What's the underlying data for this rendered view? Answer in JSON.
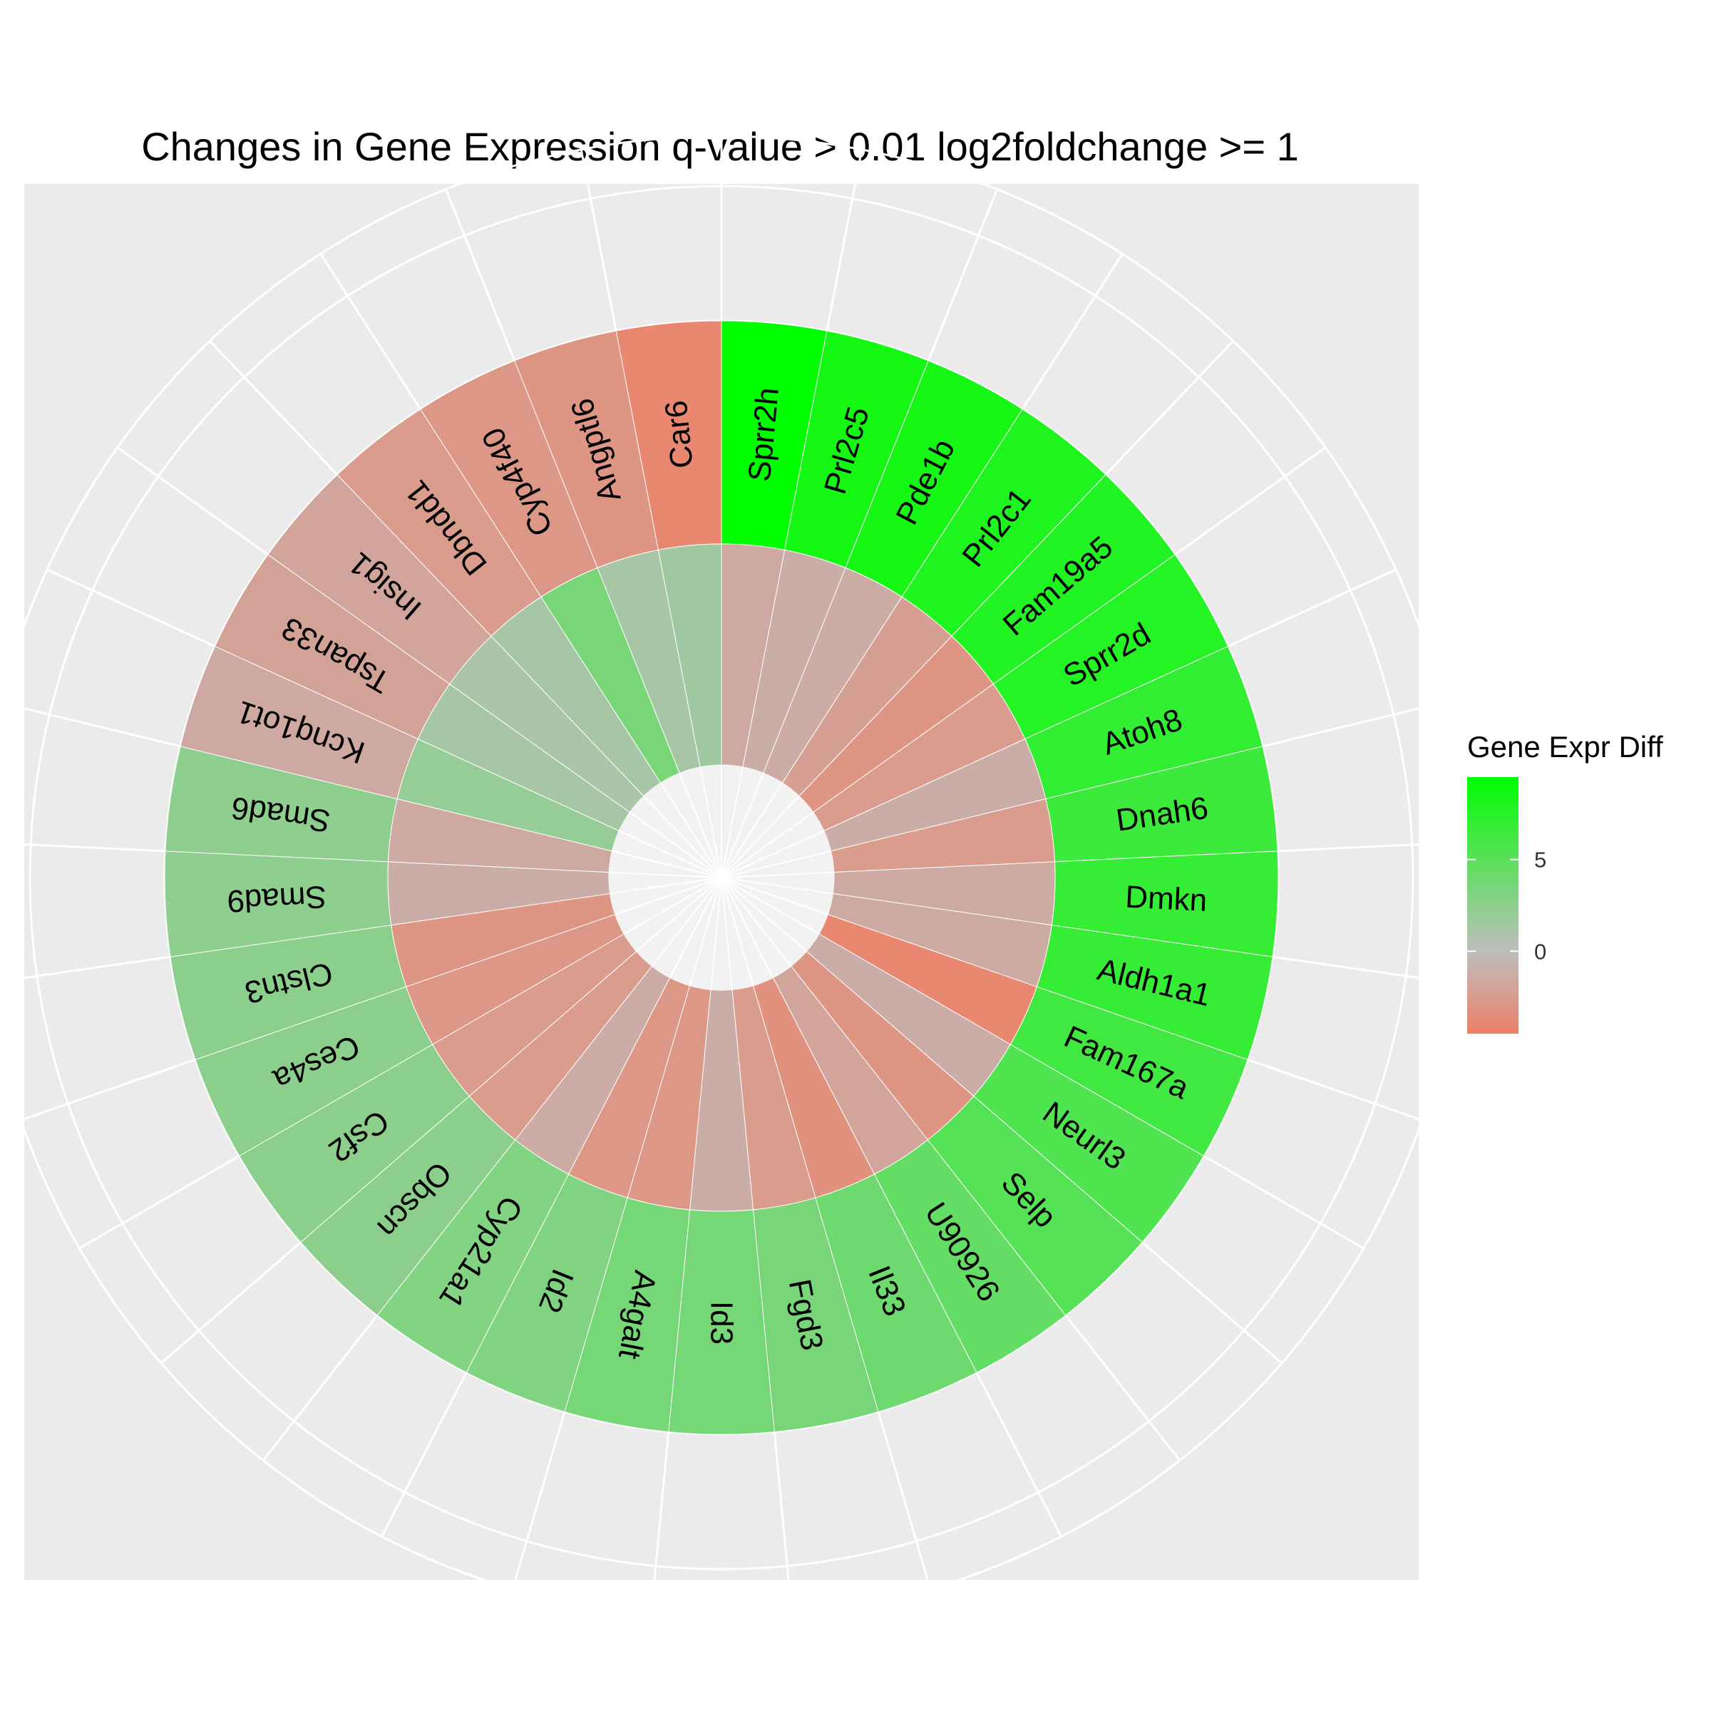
{
  "chart_data": {
    "type": "circular-heatmap",
    "title": "Changes in Gene Expression q-value > 0.01 log2foldchange >= 1",
    "legend": {
      "title": "Gene Expr Diff",
      "ticks": [
        5,
        0
      ],
      "range": [
        -4.5,
        9.5
      ],
      "placement": "right",
      "colors": {
        "low": "#EE8066",
        "mid": "#BEBEBE",
        "high": "#00FF00"
      }
    },
    "grid": true,
    "panel_background": "#EBEBEB",
    "rings": [
      "inner",
      "outer"
    ],
    "genes": [
      "Sprr2h",
      "Prl2c5",
      "Pde1b",
      "Prl2c1",
      "Fam19a5",
      "Sprr2d",
      "Atoh8",
      "Dnah6",
      "Dmkn",
      "Aldh1a1",
      "Fam167a",
      "Neurl3",
      "Selp",
      "U90926",
      "Il33",
      "Fgd3",
      "Id3",
      "A4galt",
      "Id2",
      "Cyp21a1",
      "Obscn",
      "Csf2",
      "Ces4a",
      "Clstn3",
      "Smad9",
      "Smad6",
      "Kcnq1ot1",
      "Tspan33",
      "Insig1",
      "Dbndd1",
      "Cyp4f40",
      "Angptl6",
      "Car6"
    ],
    "series": [
      {
        "ring": "outer",
        "values": [
          9.5,
          8.5,
          8.4,
          8.0,
          7.8,
          7.7,
          7.0,
          6.5,
          6.8,
          6.8,
          6.2,
          5.5,
          5.2,
          4.5,
          4.0,
          3.5,
          3.6,
          3.6,
          3.1,
          3.0,
          2.5,
          2.5,
          2.5,
          2.5,
          2.4,
          2.4,
          -1.5,
          -2.0,
          -1.8,
          -2.5,
          -2.8,
          -3.0,
          -4.0
        ]
      },
      {
        "ring": "inner",
        "values": [
          -1.5,
          -1.2,
          -1.3,
          -2.2,
          -3.0,
          -2.5,
          -1.2,
          -2.5,
          -1.4,
          -1.4,
          -4.0,
          -1.2,
          -3.0,
          -1.8,
          -3.2,
          -2.5,
          -1.2,
          -2.8,
          -2.8,
          -1.3,
          -2.5,
          -2.5,
          -2.8,
          -3.0,
          -1.2,
          -1.5,
          2.0,
          1.2,
          1.0,
          1.2,
          3.5,
          1.2,
          1.5
        ]
      }
    ]
  }
}
